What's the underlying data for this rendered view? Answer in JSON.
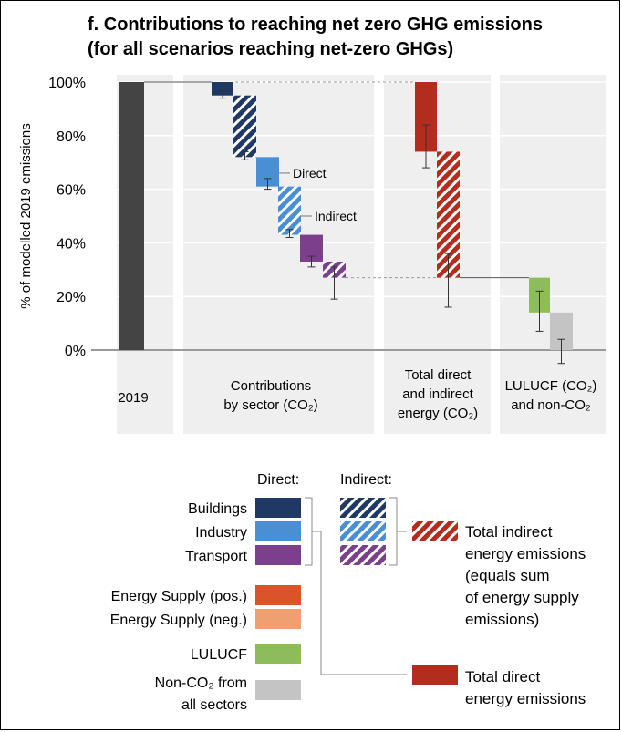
{
  "title_line1": "f. Contributions to reaching net zero GHG emissions",
  "title_line2": "(for all scenarios reaching net-zero GHGs)",
  "chart_data": {
    "type": "bar",
    "subtype": "waterfall",
    "ylabel": "% of modelled 2019 emissions",
    "ylim": [
      0,
      100
    ],
    "yticks": [
      "0%",
      "20%",
      "40%",
      "60%",
      "80%",
      "100%"
    ],
    "groups": [
      {
        "label_lines": [
          "2019"
        ]
      },
      {
        "label_lines": [
          "Contributions",
          "by sector (CO₂)"
        ]
      },
      {
        "label_lines": [
          "Total direct",
          "and indirect",
          "energy (CO₂)"
        ]
      },
      {
        "label_lines": [
          "LULUCF (CO₂)",
          "and non-CO₂"
        ]
      }
    ],
    "bars": [
      {
        "group": 0,
        "category": "2019",
        "pattern": "solid",
        "color": "#444444",
        "from": 0,
        "to": 100
      },
      {
        "group": 1,
        "category": "Buildings",
        "pattern": "solid",
        "color": "#1f3864",
        "from": 100,
        "to": 95,
        "err_low": 94,
        "err_high": 97
      },
      {
        "group": 1,
        "category": "Buildings",
        "pattern": "hatched",
        "color": "#1f3864",
        "from": 95,
        "to": 72,
        "err_low": 71,
        "err_high": 74
      },
      {
        "group": 1,
        "category": "Industry",
        "pattern": "solid",
        "color": "#4a8fd4",
        "from": 72,
        "to": 61,
        "err_low": 60,
        "err_high": 64
      },
      {
        "group": 1,
        "category": "Industry",
        "pattern": "hatched",
        "color": "#4a8fd4",
        "from": 61,
        "to": 43,
        "err_low": 42,
        "err_high": 45
      },
      {
        "group": 1,
        "category": "Transport",
        "pattern": "solid",
        "color": "#7b3f8c",
        "from": 43,
        "to": 33,
        "err_low": 31,
        "err_high": 35
      },
      {
        "group": 1,
        "category": "Transport",
        "pattern": "hatched",
        "color": "#7b3f8c",
        "from": 33,
        "to": 27,
        "err_low": 19,
        "err_high": 31
      },
      {
        "group": 2,
        "category": "Total direct energy emissions",
        "pattern": "solid",
        "color": "#b32d1e",
        "from": 100,
        "to": 74,
        "err_low": 68,
        "err_high": 84
      },
      {
        "group": 2,
        "category": "Total indirect energy emissions",
        "pattern": "hatched",
        "color": "#b32d1e",
        "from": 74,
        "to": 27,
        "err_low": 16,
        "err_high": 36
      },
      {
        "group": 3,
        "category": "LULUCF",
        "pattern": "solid",
        "color": "#8fbc5a",
        "from": 27,
        "to": 14,
        "err_low": 7,
        "err_high": 22
      },
      {
        "group": 3,
        "category": "Non-CO₂ from all sectors",
        "pattern": "solid",
        "color": "#c4c4c4",
        "from": 14,
        "to": 0,
        "err_low": -5,
        "err_high": 4
      }
    ],
    "annotations": [
      {
        "text": "Direct",
        "y": 66
      },
      {
        "text": "Indirect",
        "y": 50
      }
    ],
    "legend": {
      "header_direct": "Direct:",
      "header_indirect": "Indirect:",
      "rows": [
        {
          "label": "Buildings",
          "color": "#1f3864",
          "direct": true,
          "indirect": true
        },
        {
          "label": "Industry",
          "color": "#4a8fd4",
          "direct": true,
          "indirect": true
        },
        {
          "label": "Transport",
          "color": "#7b3f8c",
          "direct": true,
          "indirect": true
        },
        {
          "label": "Energy Supply (pos.)",
          "color": "#d9532b",
          "direct": true,
          "indirect": false
        },
        {
          "label": "Energy Supply (neg.)",
          "color": "#f0a070",
          "direct": true,
          "indirect": false
        },
        {
          "label": "LULUCF",
          "color": "#8fbc5a",
          "direct": true,
          "indirect": false
        },
        {
          "label": "Non-CO₂ from",
          "label2": "all sectors",
          "color": "#c4c4c4",
          "direct": true,
          "indirect": false
        }
      ],
      "total_indirect_lines": [
        "Total indirect",
        "energy emissions",
        "(equals sum",
        "of energy supply",
        "emissions)"
      ],
      "total_indirect_color": "#b32d1e",
      "total_direct_lines": [
        "Total direct",
        "energy emissions"
      ],
      "total_direct_color": "#b32d1e"
    }
  }
}
